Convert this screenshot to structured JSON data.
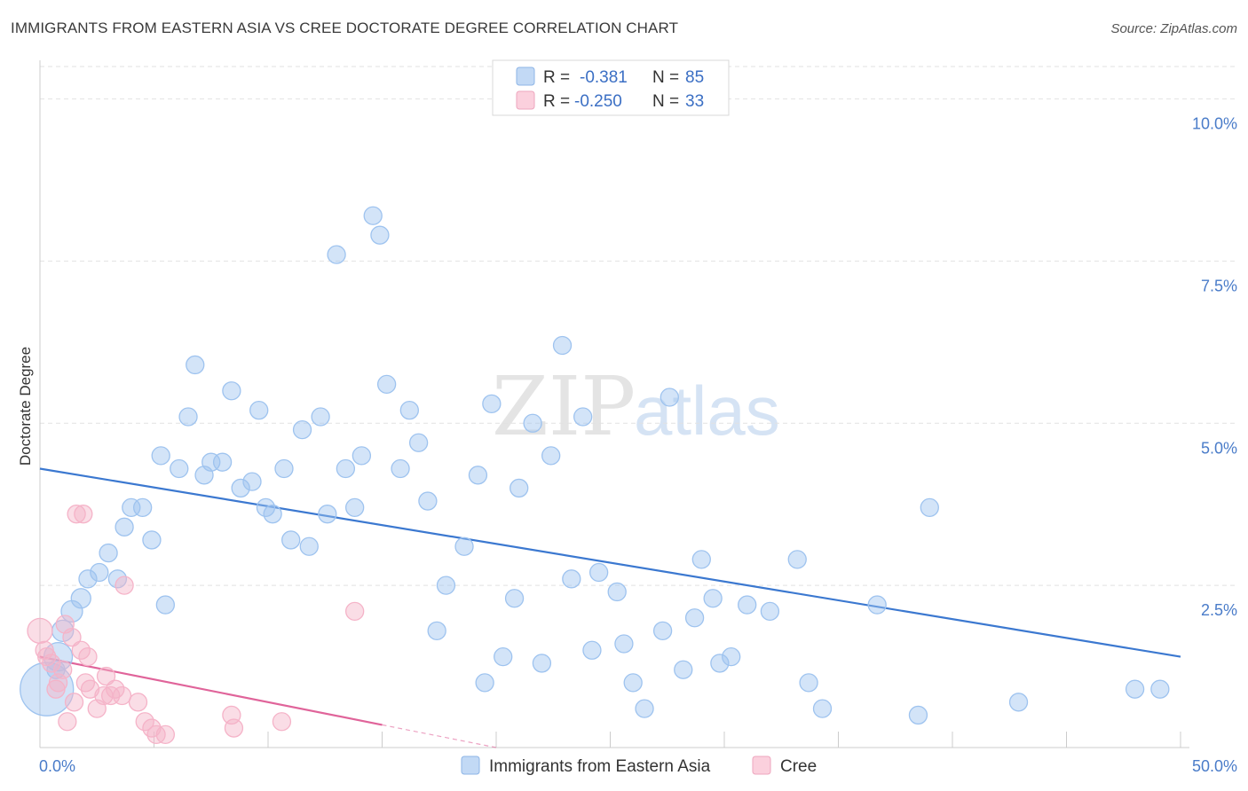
{
  "chart_data": {
    "type": "scatter",
    "title": "IMMIGRANTS FROM EASTERN ASIA VS CREE DOCTORATE DEGREE CORRELATION CHART",
    "source": "Source: ZipAtlas.com",
    "xlabel": "",
    "ylabel": "Doctorate Degree",
    "xlim": [
      0,
      50
    ],
    "ylim": [
      0,
      10.5
    ],
    "x_tick_labels": [
      "0.0%",
      "50.0%"
    ],
    "y_ticks": [
      2.5,
      5.0,
      7.5,
      10.0
    ],
    "y_tick_labels": [
      "2.5%",
      "5.0%",
      "7.5%",
      "10.0%"
    ],
    "grid": true,
    "legend_position": "top-center",
    "watermark": "ZIPatlas",
    "legend": [
      {
        "r_label": "R =",
        "r_value": "-0.381",
        "n_label": "N =",
        "n_value": "85",
        "color": "#9ec3ef"
      },
      {
        "r_label": "R =",
        "r_value": "-0.250",
        "n_label": "N =",
        "n_value": "33",
        "color": "#f5b3c8"
      }
    ],
    "series": [
      {
        "name": "Immigrants from Eastern Asia",
        "color": "#9ec3ef",
        "line_color": "#3b78d0",
        "trend": {
          "x0": 0,
          "y0": 4.3,
          "x1": 50,
          "y1": 1.4
        },
        "points": [
          [
            0.3,
            0.9,
            30
          ],
          [
            0.8,
            1.4,
            16
          ],
          [
            1.0,
            1.8,
            12
          ],
          [
            1.4,
            2.1,
            12
          ],
          [
            1.8,
            2.3,
            11
          ],
          [
            2.1,
            2.6,
            10
          ],
          [
            2.6,
            2.7,
            10
          ],
          [
            3.0,
            3.0,
            10
          ],
          [
            3.4,
            2.6,
            10
          ],
          [
            3.7,
            3.4,
            10
          ],
          [
            4.0,
            3.7,
            10
          ],
          [
            4.5,
            3.7,
            10
          ],
          [
            4.9,
            3.2,
            10
          ],
          [
            5.3,
            4.5,
            10
          ],
          [
            5.5,
            2.2,
            10
          ],
          [
            6.1,
            4.3,
            10
          ],
          [
            6.5,
            5.1,
            10
          ],
          [
            6.8,
            5.9,
            10
          ],
          [
            7.2,
            4.2,
            10
          ],
          [
            7.5,
            4.4,
            10
          ],
          [
            8.0,
            4.4,
            10
          ],
          [
            8.4,
            5.5,
            10
          ],
          [
            8.8,
            4.0,
            10
          ],
          [
            9.3,
            4.1,
            10
          ],
          [
            9.6,
            5.2,
            10
          ],
          [
            9.9,
            3.7,
            10
          ],
          [
            10.2,
            3.6,
            10
          ],
          [
            10.7,
            4.3,
            10
          ],
          [
            11.0,
            3.2,
            10
          ],
          [
            11.5,
            4.9,
            10
          ],
          [
            11.8,
            3.1,
            10
          ],
          [
            12.3,
            5.1,
            10
          ],
          [
            12.6,
            3.6,
            10
          ],
          [
            13.0,
            7.6,
            10
          ],
          [
            13.4,
            4.3,
            10
          ],
          [
            13.8,
            3.7,
            10
          ],
          [
            14.1,
            4.5,
            10
          ],
          [
            14.6,
            8.2,
            10
          ],
          [
            14.9,
            7.9,
            10
          ],
          [
            15.2,
            5.6,
            10
          ],
          [
            15.8,
            4.3,
            10
          ],
          [
            16.2,
            5.2,
            10
          ],
          [
            16.6,
            4.7,
            10
          ],
          [
            17.0,
            3.8,
            10
          ],
          [
            17.4,
            1.8,
            10
          ],
          [
            17.8,
            2.5,
            10
          ],
          [
            18.6,
            3.1,
            10
          ],
          [
            19.2,
            4.2,
            10
          ],
          [
            19.5,
            1.0,
            10
          ],
          [
            19.8,
            5.3,
            10
          ],
          [
            20.3,
            1.4,
            10
          ],
          [
            20.8,
            2.3,
            10
          ],
          [
            21.0,
            4.0,
            10
          ],
          [
            21.6,
            5.0,
            10
          ],
          [
            22.0,
            1.3,
            10
          ],
          [
            22.4,
            4.5,
            10
          ],
          [
            22.9,
            6.2,
            10
          ],
          [
            23.3,
            2.6,
            10
          ],
          [
            23.8,
            5.1,
            10
          ],
          [
            24.2,
            1.5,
            10
          ],
          [
            24.5,
            2.7,
            10
          ],
          [
            25.3,
            2.4,
            10
          ],
          [
            25.6,
            1.6,
            10
          ],
          [
            26.0,
            1.0,
            10
          ],
          [
            26.5,
            0.6,
            10
          ],
          [
            27.3,
            1.8,
            10
          ],
          [
            27.6,
            5.4,
            10
          ],
          [
            28.2,
            1.2,
            10
          ],
          [
            28.7,
            2.0,
            10
          ],
          [
            29.0,
            2.9,
            10
          ],
          [
            29.5,
            2.3,
            10
          ],
          [
            29.8,
            1.3,
            10
          ],
          [
            30.3,
            1.4,
            10
          ],
          [
            31.0,
            2.2,
            10
          ],
          [
            32.0,
            2.1,
            10
          ],
          [
            33.2,
            2.9,
            10
          ],
          [
            33.7,
            1.0,
            10
          ],
          [
            34.3,
            0.6,
            10
          ],
          [
            36.7,
            2.2,
            10
          ],
          [
            38.5,
            0.5,
            10
          ],
          [
            39.0,
            3.7,
            10
          ],
          [
            42.9,
            0.7,
            10
          ],
          [
            48.0,
            0.9,
            10
          ],
          [
            49.1,
            0.9,
            10
          ],
          [
            0.7,
            1.2,
            10
          ]
        ]
      },
      {
        "name": "Cree",
        "color": "#f5b3c8",
        "line_color": "#e0649a",
        "trend": {
          "x0": 0,
          "y0": 1.4,
          "x1": 15,
          "y1": 0.35
        },
        "trend_dash_to": {
          "x": 20,
          "y": 0.0
        },
        "points": [
          [
            0.0,
            1.8,
            14
          ],
          [
            0.3,
            1.4,
            10
          ],
          [
            0.5,
            1.3,
            10
          ],
          [
            0.7,
            0.9,
            10
          ],
          [
            0.8,
            1.0,
            10
          ],
          [
            1.0,
            1.2,
            10
          ],
          [
            1.1,
            1.9,
            10
          ],
          [
            1.2,
            0.4,
            10
          ],
          [
            1.4,
            1.7,
            10
          ],
          [
            1.5,
            0.7,
            10
          ],
          [
            1.6,
            3.6,
            10
          ],
          [
            1.8,
            1.5,
            10
          ],
          [
            1.9,
            3.6,
            10
          ],
          [
            2.0,
            1.0,
            10
          ],
          [
            2.1,
            1.4,
            10
          ],
          [
            2.2,
            0.9,
            10
          ],
          [
            2.5,
            0.6,
            10
          ],
          [
            2.8,
            0.8,
            10
          ],
          [
            2.9,
            1.1,
            10
          ],
          [
            3.1,
            0.8,
            10
          ],
          [
            3.3,
            0.9,
            10
          ],
          [
            3.6,
            0.8,
            10
          ],
          [
            3.7,
            2.5,
            10
          ],
          [
            4.3,
            0.7,
            10
          ],
          [
            4.6,
            0.4,
            10
          ],
          [
            4.9,
            0.3,
            10
          ],
          [
            5.1,
            0.2,
            10
          ],
          [
            5.5,
            0.2,
            10
          ],
          [
            8.4,
            0.5,
            10
          ],
          [
            8.5,
            0.3,
            10
          ],
          [
            10.6,
            0.4,
            10
          ],
          [
            13.8,
            2.1,
            10
          ],
          [
            0.2,
            1.5,
            10
          ]
        ]
      }
    ]
  }
}
